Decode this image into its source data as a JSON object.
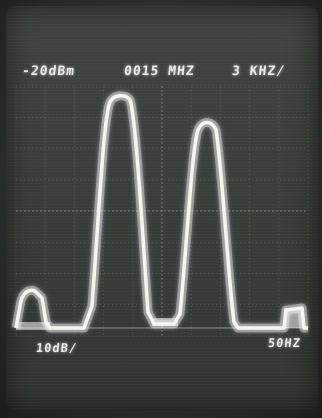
{
  "analyzer": {
    "ref_level": "-20dBm",
    "center_freq": "0015 MHZ",
    "span": "3 KHZ",
    "span_suffix": "/",
    "scale": "10dB/",
    "bandwidth": "50HZ"
  },
  "trace": {
    "color": "#f4f6f0",
    "glow_color": "#ffffff"
  }
}
